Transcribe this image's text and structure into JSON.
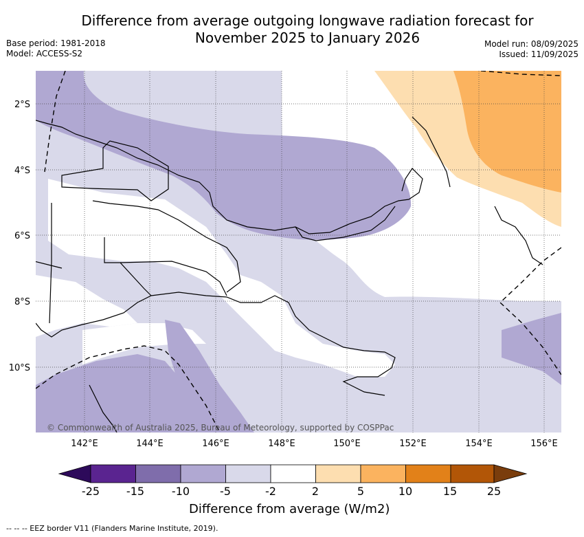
{
  "header": {
    "title_line1": "Difference from average outgoing longwave radiation forecast for",
    "title_line2": "November 2025 to January 2026",
    "base_period": "Base period: 1981-2018",
    "model": "Model: ACCESS-S2",
    "model_run": "Model run: 08/09/2025",
    "issued": "Issued: 11/09/2025"
  },
  "map": {
    "lat_labels": [
      "2°S",
      "4°S",
      "6°S",
      "8°S",
      "10°S"
    ],
    "lon_labels": [
      "142°E",
      "144°E",
      "146°E",
      "148°E",
      "150°E",
      "152°E",
      "154°E",
      "156°E"
    ],
    "copyright": "© Commonwealth of Australia 2025, Bureau of Meteorology, supported by COSPPac"
  },
  "colorbar": {
    "ticks": [
      "-25",
      "-15",
      "-10",
      "-5",
      "-2",
      "2",
      "5",
      "10",
      "15",
      "25"
    ],
    "colors": [
      "#2d0a5a",
      "#5a2490",
      "#7f6dab",
      "#b0a8d2",
      "#d9d9ea",
      "#ffffff",
      "#fddeb0",
      "#fbb35f",
      "#e28119",
      "#b25607",
      "#7a3d0c"
    ],
    "label": "Difference from average (W/m2)"
  },
  "footnote": "-- -- -- EEZ border V11 (Flanders Marine Institute, 2019)."
}
